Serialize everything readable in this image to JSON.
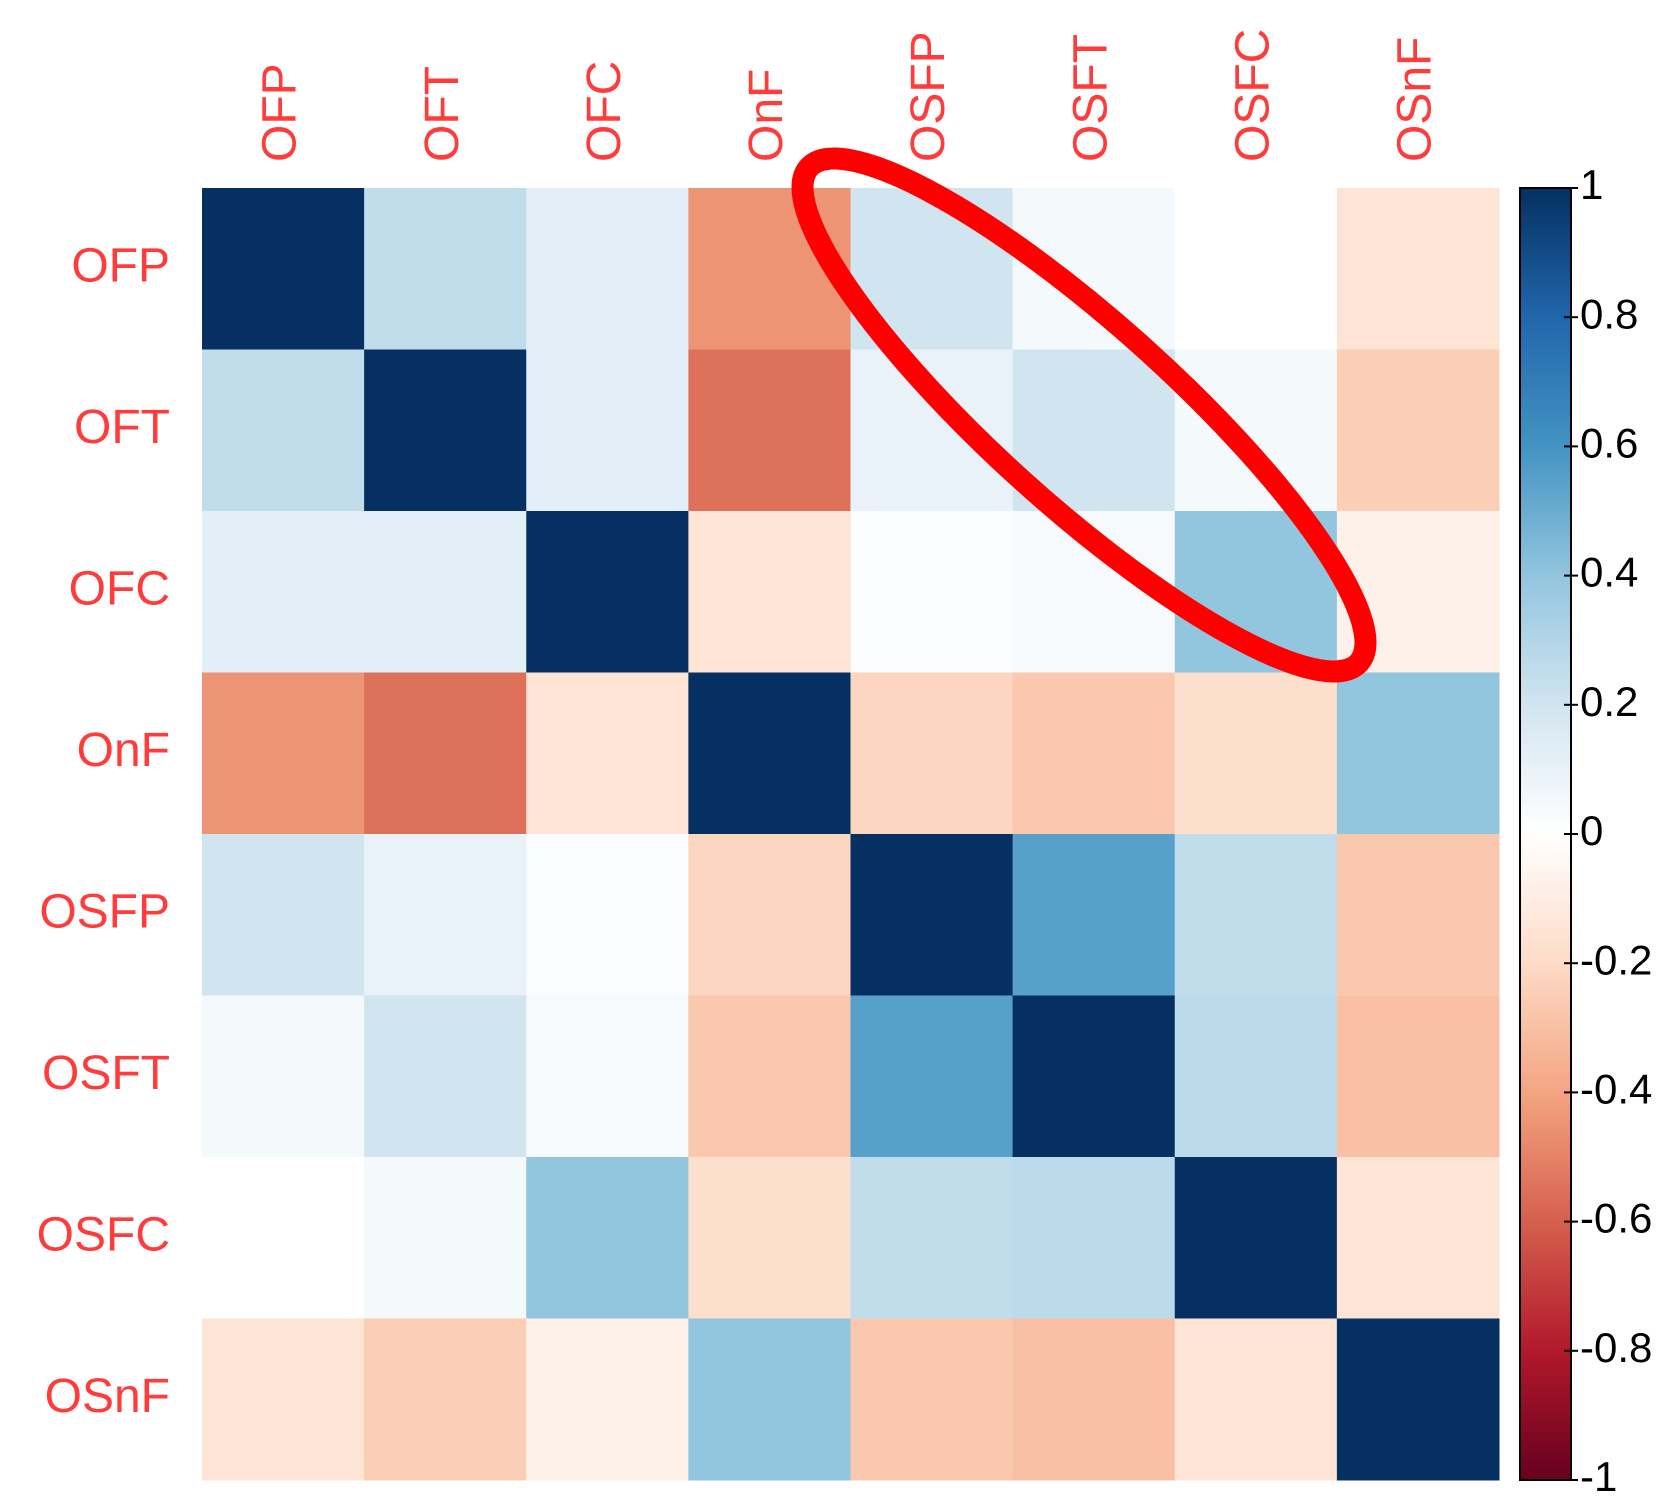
{
  "chart_data": {
    "type": "heatmap",
    "rows": [
      "OFP",
      "OFT",
      "OFC",
      "OnF",
      "OSFP",
      "OSFT",
      "OSFC",
      "OSnF"
    ],
    "columns": [
      "OFP",
      "OFT",
      "OFC",
      "OnF",
      "OSFP",
      "OSFT",
      "OSFC",
      "OSnF"
    ],
    "values": [
      [
        1,
        0.25,
        0.12,
        -0.45,
        0.2,
        0.05,
        0.0,
        -0.15
      ],
      [
        0.25,
        1,
        0.12,
        -0.55,
        0.1,
        0.2,
        0.05,
        -0.25
      ],
      [
        0.12,
        0.12,
        1,
        -0.15,
        0.02,
        0.04,
        0.4,
        -0.08
      ],
      [
        -0.45,
        -0.55,
        -0.15,
        1,
        -0.22,
        -0.27,
        -0.18,
        0.4
      ],
      [
        0.2,
        0.1,
        0.02,
        -0.22,
        1,
        0.55,
        0.25,
        -0.27
      ],
      [
        0.05,
        0.2,
        0.04,
        -0.27,
        0.55,
        1,
        0.27,
        -0.3
      ],
      [
        0.0,
        0.05,
        0.4,
        -0.18,
        0.25,
        0.27,
        1,
        -0.15
      ],
      [
        -0.15,
        -0.25,
        -0.08,
        0.4,
        -0.27,
        -0.3,
        -0.15,
        1
      ]
    ],
    "colorscale": [
      "#67001f",
      "#b2182b",
      "#d6604d",
      "#f4a582",
      "#fddbc7",
      "#ffffff",
      "#d1e5f0",
      "#92c5de",
      "#4393c3",
      "#2166ac",
      "#053061"
    ],
    "clim": [
      -1,
      1
    ],
    "cticks": [
      -1,
      -0.8,
      -0.6,
      -0.4,
      -0.2,
      0,
      0.2,
      0.4,
      0.6,
      0.8,
      1
    ]
  }
}
